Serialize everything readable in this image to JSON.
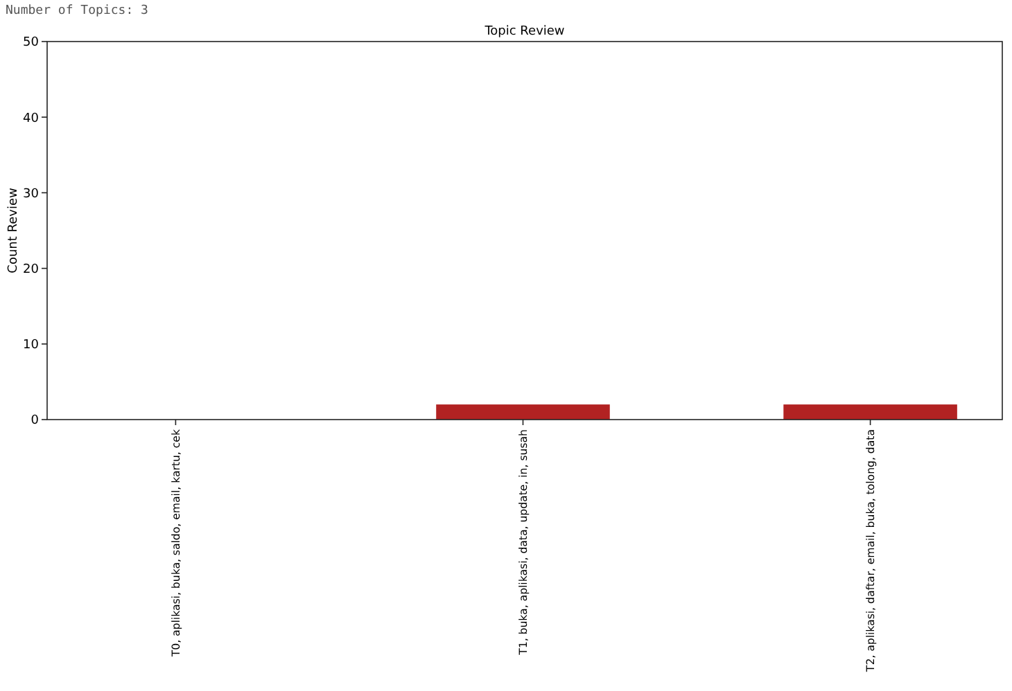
{
  "chart_data": {
    "type": "bar",
    "title": "Topic Review",
    "ylabel": "Count Review",
    "annotations": [
      "Number of Topics: 3"
    ],
    "categories": [
      "T0, aplikasi, buka, saldo, email, kartu, cek",
      "T1, buka, aplikasi, data, update, in, susah",
      "T2, aplikasi, daftar, email, buka, tolong, data"
    ],
    "values": [
      0,
      2,
      2
    ],
    "color": "#b22222",
    "ylim": [
      0,
      50
    ],
    "yticks": [
      0,
      10,
      20,
      30,
      40,
      50
    ],
    "grid": false
  }
}
